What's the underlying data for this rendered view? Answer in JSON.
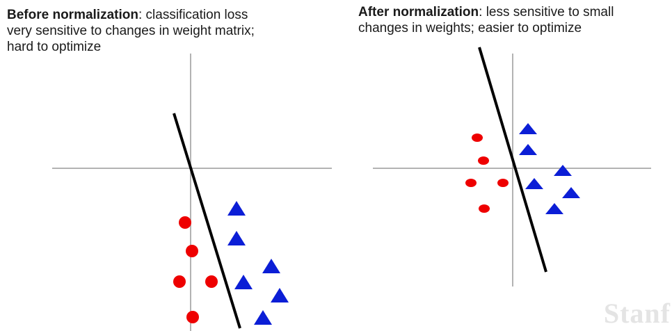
{
  "left_caption": {
    "title": "Before normalization",
    "separator": ": ",
    "line1": "classification loss",
    "line2": "very sensitive to changes in weight matrix;",
    "line3": "hard to optimize"
  },
  "right_caption": {
    "title": "After normalization",
    "separator": ": ",
    "line1": "less sensitive to small",
    "line2": "changes in weights; easier to optimize"
  },
  "watermark": "Stanf",
  "colors": {
    "circle": "#ee0000",
    "triangle": "#0b1ed6",
    "axis": "#9a9a9a",
    "boundary": "#000000"
  }
}
